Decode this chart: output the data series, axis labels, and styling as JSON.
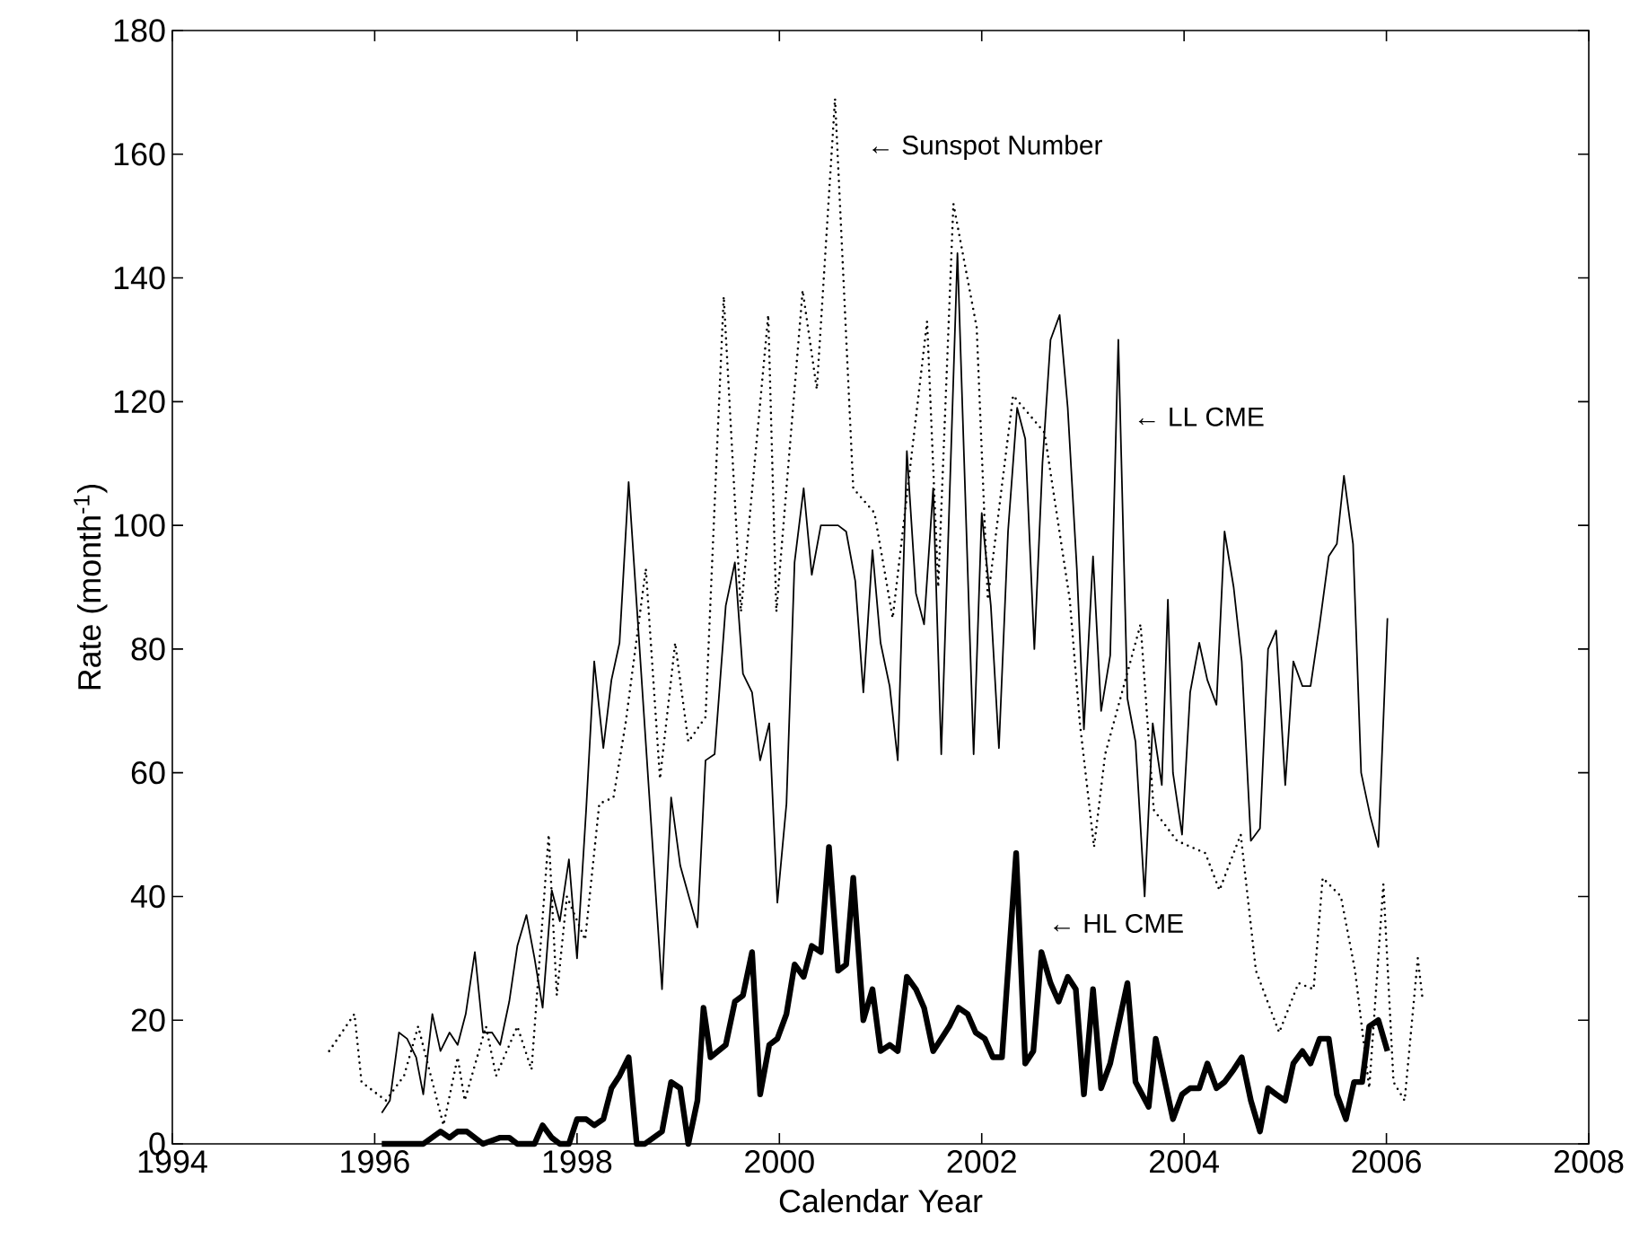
{
  "chart_data": {
    "type": "line",
    "xlabel": "Calendar Year",
    "ylabel": "Rate (month$^{-1}$)",
    "xlim": [
      1994,
      2008
    ],
    "ylim": [
      0,
      180
    ],
    "xticks": [
      1994,
      1996,
      1998,
      2000,
      2002,
      2004,
      2006,
      2008
    ],
    "yticks": [
      0,
      20,
      40,
      60,
      80,
      100,
      120,
      140,
      160,
      180
    ],
    "series": [
      {
        "color": "#000000",
        "line_style": "dotted",
        "x": [
          1995.55,
          1995.8,
          1995.87,
          1996.11,
          1996.29,
          1996.43,
          1996.68,
          1996.82,
          1996.89,
          1997.1,
          1997.2,
          1997.41,
          1997.55,
          1997.72,
          1997.8,
          1997.9,
          1998.08,
          1998.22,
          1998.36,
          1998.48,
          1998.68,
          1998.82,
          1998.97,
          1999.1,
          1999.27,
          1999.38,
          1999.45,
          1999.62,
          1999.89,
          1999.97,
          2000.23,
          2000.37,
          2000.55,
          2000.73,
          2000.94,
          2001.12,
          2001.46,
          2001.57,
          2001.72,
          2001.95,
          2002.06,
          2002.31,
          2002.62,
          2002.87,
          2002.97,
          2003.11,
          2003.22,
          2003.57,
          2003.7,
          2003.93,
          2004.21,
          2004.35,
          2004.56,
          2004.71,
          2004.94,
          2005.13,
          2005.28,
          2005.37,
          2005.55,
          2005.69,
          2005.83,
          2005.97,
          2006.07,
          2006.18,
          2006.31,
          2006.36
        ],
        "values": [
          15,
          21,
          10,
          7,
          11,
          19,
          3,
          14,
          7,
          19,
          11,
          19,
          12,
          50,
          24,
          40,
          33,
          55,
          56,
          68,
          93,
          59,
          81,
          65,
          69,
          111,
          137,
          86,
          134,
          86,
          138,
          122,
          169,
          106,
          102,
          85,
          133,
          90,
          152,
          132,
          88,
          121,
          115,
          88,
          68,
          48,
          63,
          84,
          54,
          49,
          47,
          41,
          50,
          28,
          18,
          26,
          25,
          43,
          40,
          28,
          9,
          42,
          10,
          7,
          30,
          23
        ]
      },
      {
        "color": "#000000",
        "line_style": "solid",
        "x": [
          1996.07,
          1996.15,
          1996.24,
          1996.32,
          1996.41,
          1996.48,
          1996.57,
          1996.65,
          1996.74,
          1996.82,
          1996.9,
          1996.99,
          1997.07,
          1997.16,
          1997.24,
          1997.33,
          1997.41,
          1997.5,
          1997.58,
          1997.66,
          1997.75,
          1997.83,
          1997.92,
          1998.0,
          1998.09,
          1998.17,
          1998.26,
          1998.34,
          1998.42,
          1998.51,
          1998.84,
          1998.93,
          1999.02,
          1999.19,
          1999.27,
          1999.36,
          1999.47,
          1999.56,
          1999.64,
          1999.73,
          1999.81,
          1999.9,
          1999.98,
          2000.07,
          2000.15,
          2000.24,
          2000.32,
          2000.41,
          2000.49,
          2000.58,
          2000.66,
          2000.75,
          2000.83,
          2000.92,
          2001.0,
          2001.09,
          2001.17,
          2001.26,
          2001.35,
          2001.43,
          2001.52,
          2001.6,
          2001.76,
          2001.92,
          2002.0,
          2002.09,
          2002.17,
          2002.26,
          2002.35,
          2002.43,
          2002.52,
          2002.6,
          2002.68,
          2002.77,
          2002.85,
          2002.94,
          2003.01,
          2003.1,
          2003.18,
          2003.27,
          2003.35,
          2003.44,
          2003.52,
          2003.61,
          2003.69,
          2003.78,
          2003.84,
          2003.89,
          2003.98,
          2004.06,
          2004.15,
          2004.23,
          2004.32,
          2004.4,
          2004.49,
          2004.57,
          2004.66,
          2004.75,
          2004.83,
          2004.91,
          2005.0,
          2005.08,
          2005.17,
          2005.25,
          2005.34,
          2005.43,
          2005.51,
          2005.58,
          2005.67,
          2005.75,
          2005.84,
          2005.92,
          2006.01
        ],
        "values": [
          5,
          7,
          18,
          17,
          14,
          8,
          21,
          15,
          18,
          16,
          21,
          31,
          18,
          18,
          16,
          23,
          32,
          37,
          30,
          22,
          41,
          36,
          46,
          30,
          54,
          78,
          64,
          75,
          81,
          107,
          25,
          56,
          45,
          35,
          62,
          63,
          87,
          94,
          76,
          73,
          62,
          68,
          39,
          55,
          94,
          106,
          92,
          100,
          100,
          100,
          99,
          91,
          73,
          96,
          81,
          74,
          62,
          112,
          89,
          84,
          106,
          63,
          144,
          63,
          102,
          87,
          64,
          99,
          119,
          114,
          80,
          110,
          130,
          134,
          119,
          93,
          67,
          95,
          70,
          79,
          130,
          72,
          65,
          40,
          68,
          58,
          88,
          60,
          50,
          73,
          81,
          75,
          71,
          99,
          90,
          78,
          49,
          51,
          80,
          83,
          58,
          78,
          74,
          74,
          84,
          95,
          97,
          108,
          97,
          60,
          53,
          48,
          85
        ]
      },
      {
        "color": "#000000",
        "line_style": "solid",
        "x": [
          1996.07,
          1996.48,
          1996.65,
          1996.74,
          1996.82,
          1996.91,
          1997.07,
          1997.24,
          1997.33,
          1997.41,
          1997.58,
          1997.66,
          1997.75,
          1997.83,
          1997.92,
          1998.0,
          1998.09,
          1998.17,
          1998.26,
          1998.34,
          1998.42,
          1998.51,
          1998.59,
          1998.67,
          1998.84,
          1998.93,
          1999.02,
          1999.1,
          1999.19,
          1999.25,
          1999.32,
          1999.47,
          1999.56,
          1999.64,
          1999.73,
          1999.81,
          1999.9,
          1999.98,
          2000.07,
          2000.15,
          2000.24,
          2000.32,
          2000.41,
          2000.49,
          2000.58,
          2000.66,
          2000.73,
          2000.83,
          2000.92,
          2001.0,
          2001.09,
          2001.17,
          2001.26,
          2001.35,
          2001.43,
          2001.52,
          2001.6,
          2001.68,
          2001.77,
          2001.86,
          2001.94,
          2002.03,
          2002.11,
          2002.2,
          2002.34,
          2002.43,
          2002.51,
          2002.59,
          2002.68,
          2002.76,
          2002.85,
          2002.93,
          2003.01,
          2003.1,
          2003.18,
          2003.27,
          2003.44,
          2003.52,
          2003.65,
          2003.72,
          2003.89,
          2003.98,
          2004.06,
          2004.15,
          2004.23,
          2004.32,
          2004.4,
          2004.49,
          2004.57,
          2004.66,
          2004.75,
          2004.83,
          2004.91,
          2005.0,
          2005.08,
          2005.17,
          2005.25,
          2005.34,
          2005.43,
          2005.51,
          2005.6,
          2005.68,
          2005.76,
          2005.83,
          2005.92,
          2006.01
        ],
        "values": [
          0,
          0,
          2,
          1,
          2,
          2,
          0,
          1,
          1,
          0,
          0,
          3,
          1,
          0,
          0,
          4,
          4,
          3,
          4,
          9,
          11,
          14,
          0,
          0,
          2,
          10,
          9,
          0,
          7,
          22,
          14,
          16,
          23,
          24,
          31,
          8,
          16,
          17,
          21,
          29,
          27,
          32,
          31,
          48,
          28,
          29,
          43,
          20,
          25,
          15,
          16,
          15,
          27,
          25,
          22,
          15,
          17,
          19,
          22,
          21,
          18,
          17,
          14,
          14,
          47,
          13,
          15,
          31,
          26,
          23,
          27,
          25,
          8,
          25,
          9,
          13,
          26,
          10,
          6,
          17,
          4,
          8,
          9,
          9,
          13,
          9,
          10,
          12,
          14,
          7,
          2,
          9,
          8,
          7,
          13,
          15,
          13,
          17,
          17,
          8,
          4,
          10,
          10,
          19,
          20,
          15
        ]
      }
    ],
    "annotations": [
      "← Sunspot Number",
      "← LL CME",
      "← HL CME"
    ]
  }
}
